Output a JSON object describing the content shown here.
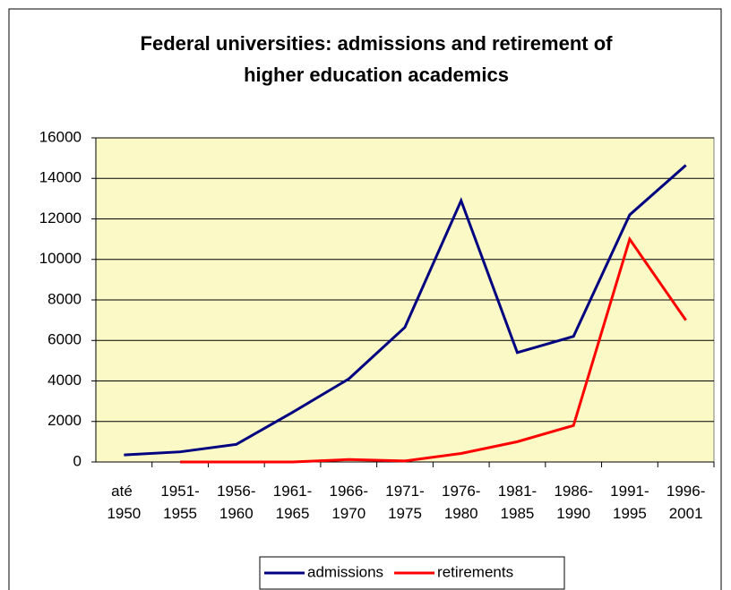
{
  "chart_data": {
    "type": "line",
    "title": [
      "Federal universities: admissions and retirement of",
      "higher education academics"
    ],
    "categories": [
      "até 1950",
      "1951-1955",
      "1956-1960",
      "1961-1965",
      "1966-1970",
      "1971-1975",
      "1976-1980",
      "1981-1985",
      "1986-1990",
      "1991-1995",
      "1996-2001"
    ],
    "series": [
      {
        "name": "admissions",
        "color": "#000080",
        "values": [
          350,
          500,
          870,
          2450,
          4100,
          6650,
          12900,
          5400,
          6200,
          12200,
          14650
        ]
      },
      {
        "name": "retirements",
        "color": "#ff0000",
        "values": [
          null,
          0,
          0,
          0,
          120,
          50,
          420,
          1000,
          1800,
          11000,
          7000
        ]
      }
    ],
    "ylim": [
      0,
      16000
    ],
    "yticks": [
      0,
      2000,
      4000,
      6000,
      8000,
      10000,
      12000,
      14000,
      16000
    ],
    "grid": true,
    "legend": "bottom",
    "plot_background": "#fbf9c5"
  }
}
